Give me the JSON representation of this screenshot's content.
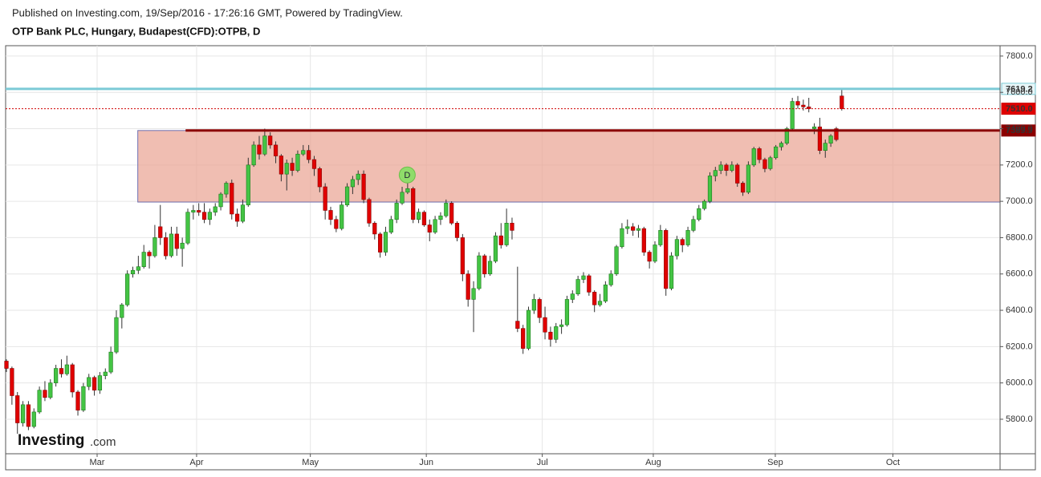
{
  "chart_data": {
    "type": "candlestick",
    "published": "Published on Investing.com, 19/Sep/2016 - 17:26:16 GMT, Powered by TradingView.",
    "title": "OTP Bank PLC, Hungary, Budapest(CFD):OTPB, D",
    "logo": [
      "Investing",
      ".com"
    ],
    "up_color": "#44c444",
    "down_color": "#e00000",
    "grid": true,
    "xlim": [
      -0.15,
      180.8
    ],
    "xticks": [
      {
        "value": 16.5,
        "label": "Mar"
      },
      {
        "value": 34.6,
        "label": "Apr"
      },
      {
        "value": 55.3,
        "label": "May"
      },
      {
        "value": 76.4,
        "label": "Jun"
      },
      {
        "value": 97.5,
        "label": "Jul"
      },
      {
        "value": 117.7,
        "label": "Aug"
      },
      {
        "value": 139.9,
        "label": "Sep"
      },
      {
        "value": 161.3,
        "label": "Oct"
      }
    ],
    "ylim": [
      5610,
      7857
    ],
    "yticks": [
      {
        "value": 5800,
        "label": "5800.0"
      },
      {
        "value": 6000,
        "label": "6000.0"
      },
      {
        "value": 6200,
        "label": "6200.0"
      },
      {
        "value": 6400,
        "label": "6400.0"
      },
      {
        "value": 6600,
        "label": "6600.0"
      },
      {
        "value": 6800,
        "label": "6800.0"
      },
      {
        "value": 7000,
        "label": "7000.0"
      },
      {
        "value": 7200,
        "label": "7200.0"
      },
      {
        "value": 7400,
        "label": "7400.0"
      },
      {
        "value": 7600,
        "label": "7600.0"
      },
      {
        "value": 7800,
        "label": "7800.0"
      }
    ],
    "zone": {
      "top": 7389.9,
      "bottom": 6996,
      "x_start": 23.9,
      "line_x_start": 32.6,
      "color": "#e9a292",
      "border": "#7070b0"
    },
    "price_lines": [
      {
        "value": 7619.2,
        "label": "7619.2",
        "color": "#7ccad6",
        "tag_bg": "#e8f6f8",
        "tag_fg": "#222",
        "style": "solid"
      },
      {
        "value": 7510,
        "label": "7510.0",
        "color": "#d00000",
        "tag_bg": "#e00000",
        "tag_fg": "#fff",
        "style": "dotted"
      },
      {
        "value": 7389.9,
        "label": "7389.9",
        "color": "#8b0000",
        "tag_bg": "#8b0000",
        "tag_fg": "#fff",
        "style": "solid"
      }
    ],
    "markers": [
      {
        "x": 73,
        "label": "D"
      }
    ],
    "ohlc": [
      [
        6120,
        6130,
        6060,
        6080
      ],
      [
        6080,
        6090,
        5880,
        5930
      ],
      [
        5930,
        5950,
        5720,
        5780
      ],
      [
        5780,
        5900,
        5760,
        5880
      ],
      [
        5880,
        5900,
        5740,
        5760
      ],
      [
        5760,
        5860,
        5750,
        5840
      ],
      [
        5840,
        5980,
        5830,
        5960
      ],
      [
        5960,
        6010,
        5900,
        5920
      ],
      [
        5920,
        6020,
        5910,
        6000
      ],
      [
        6000,
        6100,
        5980,
        6080
      ],
      [
        6080,
        6130,
        6030,
        6050
      ],
      [
        6050,
        6150,
        6040,
        6100
      ],
      [
        6100,
        6110,
        5920,
        5950
      ],
      [
        5950,
        5960,
        5820,
        5850
      ],
      [
        5850,
        6000,
        5840,
        5980
      ],
      [
        5980,
        6050,
        5960,
        6030
      ],
      [
        6030,
        6040,
        5930,
        5960
      ],
      [
        5960,
        6060,
        5940,
        6040
      ],
      [
        6040,
        6080,
        6020,
        6060
      ],
      [
        6060,
        6200,
        6050,
        6170
      ],
      [
        6170,
        6400,
        6160,
        6360
      ],
      [
        6360,
        6440,
        6300,
        6430
      ],
      [
        6430,
        6620,
        6420,
        6600
      ],
      [
        6600,
        6640,
        6580,
        6620
      ],
      [
        6620,
        6700,
        6600,
        6640
      ],
      [
        6640,
        6760,
        6630,
        6720
      ],
      [
        6720,
        6730,
        6630,
        6700
      ],
      [
        6700,
        6870,
        6690,
        6800
      ],
      [
        6860,
        6980,
        6760,
        6800
      ],
      [
        6800,
        6830,
        6680,
        6700
      ],
      [
        6700,
        6860,
        6690,
        6820
      ],
      [
        6820,
        6860,
        6700,
        6740
      ],
      [
        6740,
        6800,
        6640,
        6770
      ],
      [
        6770,
        6960,
        6760,
        6940
      ],
      [
        6940,
        6980,
        6900,
        6950
      ],
      [
        6950,
        6990,
        6920,
        6940
      ],
      [
        6940,
        6990,
        6880,
        6900
      ],
      [
        6900,
        6960,
        6870,
        6940
      ],
      [
        6940,
        6990,
        6920,
        6970
      ],
      [
        6970,
        7050,
        6950,
        7040
      ],
      [
        7040,
        7110,
        7020,
        7100
      ],
      [
        7100,
        7120,
        6900,
        6930
      ],
      [
        6930,
        6960,
        6860,
        6890
      ],
      [
        6890,
        7010,
        6880,
        6980
      ],
      [
        6980,
        7240,
        6970,
        7200
      ],
      [
        7200,
        7330,
        7190,
        7310
      ],
      [
        7310,
        7360,
        7230,
        7260
      ],
      [
        7260,
        7400,
        7250,
        7360
      ],
      [
        7360,
        7380,
        7290,
        7310
      ],
      [
        7310,
        7330,
        7210,
        7250
      ],
      [
        7250,
        7260,
        7110,
        7150
      ],
      [
        7150,
        7230,
        7060,
        7210
      ],
      [
        7210,
        7240,
        7140,
        7170
      ],
      [
        7170,
        7280,
        7160,
        7260
      ],
      [
        7260,
        7310,
        7250,
        7280
      ],
      [
        7280,
        7310,
        7210,
        7230
      ],
      [
        7230,
        7250,
        7140,
        7180
      ],
      [
        7180,
        7190,
        7050,
        7080
      ],
      [
        7080,
        7100,
        6900,
        6950
      ],
      [
        6950,
        6970,
        6870,
        6900
      ],
      [
        6900,
        6920,
        6830,
        6850
      ],
      [
        6850,
        7000,
        6840,
        6980
      ],
      [
        6980,
        7100,
        6970,
        7080
      ],
      [
        7080,
        7140,
        7040,
        7120
      ],
      [
        7120,
        7170,
        7090,
        7150
      ],
      [
        7150,
        7170,
        6990,
        7010
      ],
      [
        7010,
        7020,
        6860,
        6880
      ],
      [
        6880,
        6890,
        6790,
        6820
      ],
      [
        6820,
        6830,
        6690,
        6720
      ],
      [
        6720,
        6860,
        6700,
        6830
      ],
      [
        6830,
        6920,
        6820,
        6900
      ],
      [
        6900,
        7010,
        6880,
        6990
      ],
      [
        6990,
        7080,
        6980,
        7050
      ],
      [
        7050,
        7110,
        7040,
        7070
      ],
      [
        7070,
        7080,
        6880,
        6900
      ],
      [
        6900,
        6960,
        6880,
        6940
      ],
      [
        6940,
        6950,
        6860,
        6870
      ],
      [
        6870,
        6900,
        6780,
        6830
      ],
      [
        6830,
        6920,
        6820,
        6900
      ],
      [
        6900,
        6940,
        6870,
        6920
      ],
      [
        6920,
        7010,
        6910,
        6990
      ],
      [
        6990,
        7000,
        6870,
        6880
      ],
      [
        6880,
        6890,
        6780,
        6800
      ],
      [
        6800,
        6820,
        6560,
        6600
      ],
      [
        6600,
        6620,
        6420,
        6460
      ],
      [
        6460,
        6560,
        6280,
        6520
      ],
      [
        6520,
        6720,
        6510,
        6700
      ],
      [
        6700,
        6710,
        6580,
        6600
      ],
      [
        6600,
        6700,
        6590,
        6670
      ],
      [
        6670,
        6830,
        6660,
        6810
      ],
      [
        6810,
        6880,
        6740,
        6760
      ],
      [
        6760,
        6960,
        6750,
        6880
      ],
      [
        6880,
        6910,
        6790,
        6840
      ],
      [
        6340,
        6640,
        6280,
        6300
      ],
      [
        6300,
        6320,
        6160,
        6190
      ],
      [
        6190,
        6420,
        6180,
        6400
      ],
      [
        6400,
        6490,
        6380,
        6460
      ],
      [
        6460,
        6470,
        6330,
        6360
      ],
      [
        6360,
        6420,
        6240,
        6280
      ],
      [
        6280,
        6310,
        6200,
        6240
      ],
      [
        6240,
        6330,
        6220,
        6310
      ],
      [
        6310,
        6350,
        6270,
        6320
      ],
      [
        6320,
        6480,
        6310,
        6460
      ],
      [
        6460,
        6510,
        6440,
        6490
      ],
      [
        6490,
        6590,
        6480,
        6570
      ],
      [
        6570,
        6610,
        6550,
        6590
      ],
      [
        6590,
        6600,
        6480,
        6500
      ],
      [
        6500,
        6510,
        6390,
        6430
      ],
      [
        6430,
        6490,
        6420,
        6450
      ],
      [
        6450,
        6560,
        6440,
        6540
      ],
      [
        6540,
        6620,
        6530,
        6600
      ],
      [
        6600,
        6760,
        6590,
        6750
      ],
      [
        6750,
        6880,
        6740,
        6850
      ],
      [
        6850,
        6900,
        6820,
        6860
      ],
      [
        6860,
        6880,
        6810,
        6840
      ],
      [
        6840,
        6870,
        6800,
        6850
      ],
      [
        6850,
        6860,
        6700,
        6720
      ],
      [
        6720,
        6730,
        6630,
        6670
      ],
      [
        6670,
        6780,
        6660,
        6760
      ],
      [
        6760,
        6870,
        6750,
        6840
      ],
      [
        6840,
        6850,
        6480,
        6520
      ],
      [
        6520,
        6720,
        6510,
        6700
      ],
      [
        6700,
        6810,
        6680,
        6790
      ],
      [
        6790,
        6800,
        6720,
        6760
      ],
      [
        6760,
        6860,
        6750,
        6840
      ],
      [
        6840,
        6920,
        6830,
        6900
      ],
      [
        6900,
        6980,
        6890,
        6960
      ],
      [
        6960,
        7010,
        6950,
        7000
      ],
      [
        7000,
        7160,
        6990,
        7140
      ],
      [
        7140,
        7190,
        7110,
        7170
      ],
      [
        7170,
        7220,
        7150,
        7200
      ],
      [
        7200,
        7210,
        7140,
        7170
      ],
      [
        7170,
        7220,
        7160,
        7200
      ],
      [
        7200,
        7210,
        7080,
        7100
      ],
      [
        7100,
        7110,
        7030,
        7050
      ],
      [
        7050,
        7220,
        7040,
        7200
      ],
      [
        7200,
        7300,
        7190,
        7290
      ],
      [
        7290,
        7300,
        7210,
        7230
      ],
      [
        7230,
        7240,
        7160,
        7180
      ],
      [
        7180,
        7250,
        7170,
        7240
      ],
      [
        7240,
        7310,
        7230,
        7300
      ],
      [
        7300,
        7330,
        7280,
        7320
      ],
      [
        7320,
        7410,
        7310,
        7400
      ],
      [
        7400,
        7570,
        7390,
        7550
      ],
      [
        7550,
        7580,
        7510,
        7530
      ],
      [
        7530,
        7560,
        7500,
        7520
      ],
      [
        7520,
        7570,
        7490,
        7510
      ],
      [
        7400,
        7430,
        7370,
        7410
      ],
      [
        7410,
        7460,
        7260,
        7280
      ],
      [
        7280,
        7340,
        7240,
        7320
      ],
      [
        7320,
        7370,
        7300,
        7360
      ],
      [
        7400,
        7410,
        7330,
        7340
      ],
      [
        7580,
        7619.2,
        7500,
        7510
      ]
    ]
  }
}
